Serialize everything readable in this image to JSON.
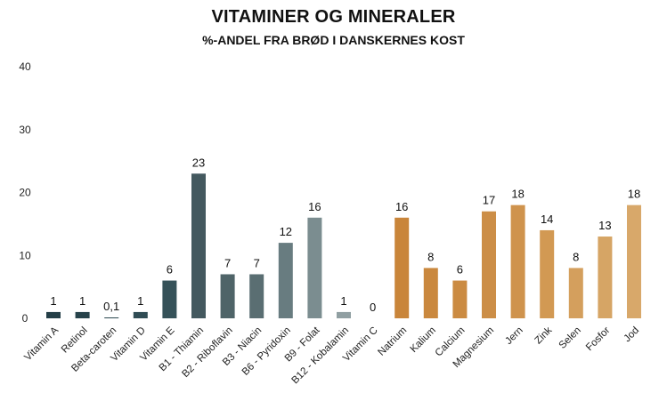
{
  "chart_data": {
    "type": "bar",
    "title": "VITAMINER OG MINERALER",
    "subtitle": "%-ANDEL FRA BRØD I DANSKERNES KOST",
    "xlabel": "",
    "ylabel": "",
    "ylim": [
      0,
      40
    ],
    "yticks": [
      0,
      10,
      20,
      30,
      40
    ],
    "grid": false,
    "legend": "none",
    "categories": [
      "Vitamin A",
      "Retinol",
      "Beta-caroten",
      "Vitamin D",
      "Vitamin E",
      "B1 - Thiamin",
      "B2 - Riboflavin",
      "B3 - Niacin",
      "B6 - Pyridoxin",
      "B9 - Folat",
      "B12 - Kobalamin",
      "Vitamin C",
      "Natrium",
      "Kalium",
      "Calcium",
      "Magnesium",
      "Jern",
      "Zink",
      "Selen",
      "Fosfor",
      "Jod"
    ],
    "values": [
      1,
      1,
      0.1,
      1,
      6,
      23,
      7,
      7,
      12,
      16,
      1,
      0,
      16,
      8,
      6,
      17,
      18,
      14,
      8,
      13,
      18
    ],
    "value_labels": [
      "1",
      "1",
      "0,1",
      "1",
      "6",
      "23",
      "7",
      "7",
      "12",
      "16",
      "1",
      "0",
      "16",
      "8",
      "6",
      "17",
      "18",
      "14",
      "8",
      "13",
      "18"
    ],
    "colors": [
      "#243f47",
      "#27434b",
      "#2b474f",
      "#304c54",
      "#365259",
      "#44595f",
      "#4f6468",
      "#5a6e72",
      "#687c80",
      "#7b8d90",
      "#909fa2",
      "#a9b5b7",
      "#c9853a",
      "#ca883e",
      "#cb8b42",
      "#cc8e47",
      "#cf934d",
      "#d29953",
      "#d49f5d",
      "#d6a565",
      "#d8a86a"
    ]
  }
}
